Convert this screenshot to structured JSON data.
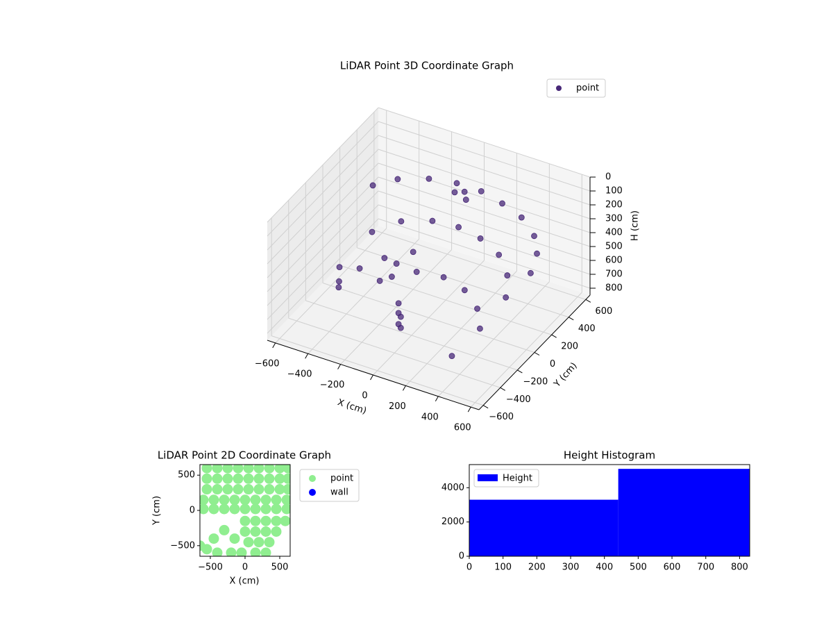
{
  "chart_data": [
    {
      "type": "scatter3d",
      "title": "LiDAR Point 3D Coordinate Graph",
      "xlabel": "X (cm)",
      "ylabel": "Y (cm)",
      "zlabel": "H (cm)",
      "series": [
        {
          "name": "point",
          "color": "#482878",
          "x": [
            -500,
            -400,
            -250,
            -100,
            50,
            200,
            350,
            480,
            560,
            600,
            -400,
            -300,
            -150,
            0,
            150,
            300,
            420,
            500,
            -200,
            -100,
            50,
            200,
            330,
            420,
            -80,
            -80,
            -80,
            -40,
            -40,
            -600,
            -550,
            -500,
            -450,
            -350,
            -300,
            -250,
            -200,
            300,
            -50,
            0,
            30
          ],
          "y": [
            300,
            400,
            480,
            520,
            520,
            480,
            420,
            320,
            200,
            50,
            100,
            250,
            330,
            350,
            320,
            250,
            120,
            -50,
            -50,
            50,
            80,
            40,
            -60,
            -200,
            -200,
            -200,
            -200,
            -250,
            -250,
            100,
            0,
            -100,
            50,
            150,
            0,
            100,
            200,
            -300,
            400,
            420,
            380
          ],
          "z": [
            280,
            260,
            250,
            250,
            250,
            255,
            260,
            280,
            300,
            330,
            450,
            430,
            420,
            420,
            425,
            440,
            460,
            480,
            600,
            590,
            590,
            600,
            620,
            640,
            650,
            720,
            800,
            780,
            700,
            780,
            800,
            760,
            700,
            650,
            700,
            620,
            580,
            820,
            220,
            210,
            230
          ]
        }
      ],
      "xlim": [
        -650,
        650
      ],
      "ylim": [
        -650,
        650
      ],
      "zlim": [
        0,
        850
      ],
      "zinverted": true,
      "xticks": [
        {
          "value": -600,
          "label": "−600"
        },
        {
          "value": -400,
          "label": "−400"
        },
        {
          "value": -200,
          "label": "−200"
        },
        0,
        200,
        400,
        600
      ],
      "yticks": [
        {
          "value": -600,
          "label": "−600"
        },
        {
          "value": -400,
          "label": "−400"
        },
        {
          "value": -200,
          "label": "−200"
        },
        0,
        200,
        400,
        600
      ],
      "zticks": [
        0,
        100,
        200,
        300,
        400,
        500,
        600,
        700,
        800
      ],
      "grid": true,
      "legend": "upper right"
    },
    {
      "type": "scatter",
      "title": "LiDAR Point 2D Coordinate Graph",
      "xlabel": "X (cm)",
      "ylabel": "Y (cm)",
      "series": [
        {
          "name": "point",
          "color": "#90ee90",
          "x": [
            -550,
            -400,
            -250,
            -100,
            50,
            200,
            350,
            500,
            620,
            -550,
            -400,
            -250,
            -100,
            50,
            200,
            350,
            500,
            620,
            -550,
            -400,
            -250,
            -100,
            50,
            200,
            350,
            500,
            620,
            -600,
            -450,
            -300,
            -150,
            0,
            150,
            300,
            450,
            600,
            -600,
            -450,
            -300,
            -150,
            0,
            150,
            300,
            450,
            600,
            0,
            150,
            300,
            450,
            580,
            0,
            150,
            300,
            450,
            50,
            200,
            350,
            -50,
            150,
            300,
            -300,
            -450,
            -550,
            -400,
            -150,
            -200,
            -650
          ],
          "y": [
            600,
            600,
            600,
            600,
            600,
            600,
            600,
            600,
            600,
            450,
            450,
            450,
            450,
            450,
            450,
            450,
            450,
            450,
            300,
            300,
            300,
            300,
            300,
            300,
            300,
            300,
            300,
            150,
            150,
            150,
            150,
            150,
            150,
            150,
            150,
            150,
            20,
            20,
            20,
            20,
            20,
            20,
            20,
            20,
            20,
            -150,
            -150,
            -150,
            -150,
            -150,
            -300,
            -300,
            -300,
            -300,
            -450,
            -450,
            -450,
            -600,
            -600,
            -600,
            -280,
            -400,
            -550,
            -600,
            -400,
            -600,
            -500
          ]
        },
        {
          "name": "wall",
          "color": "#0000ff",
          "x": [],
          "y": []
        }
      ],
      "xlim": [
        -650,
        650
      ],
      "ylim": [
        -650,
        650
      ],
      "xticks": [
        {
          "value": -500,
          "label": "−500"
        },
        0,
        500
      ],
      "yticks": [
        {
          "value": -500,
          "label": "−500"
        },
        0,
        500
      ],
      "legend": "outside right"
    },
    {
      "type": "histogram",
      "title": "Height Histogram",
      "name": "Height",
      "color": "#0000ff",
      "bins": [
        0,
        441,
        830
      ],
      "values": [
        3300,
        5100
      ],
      "xlim": [
        0,
        830
      ],
      "ylim": [
        0,
        5350
      ],
      "xticks": [
        0,
        100,
        200,
        300,
        400,
        500,
        600,
        700,
        800
      ],
      "yticks": [
        0,
        2000,
        4000
      ],
      "legend": "upper left"
    }
  ]
}
